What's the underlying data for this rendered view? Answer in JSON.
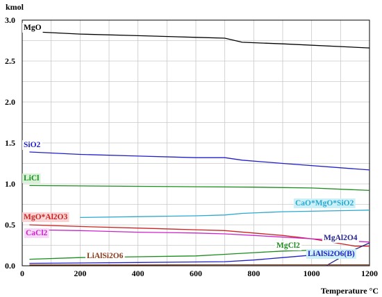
{
  "chart_data": {
    "type": "line",
    "ylabel": "kmol",
    "xlabel": "Temperature °C",
    "xlim": [
      0,
      1200
    ],
    "ylim": [
      0,
      3.0
    ],
    "x_ticks": [
      "0",
      "200",
      "400",
      "600",
      "800",
      "1000",
      "1200"
    ],
    "y_ticks": [
      "0.0",
      "0.5",
      "1.0",
      "1.5",
      "2.0",
      "2.5",
      "3.0"
    ],
    "grid": true,
    "series": [
      {
        "name": "MgO",
        "color": "#000000",
        "label_bg": "#ffffff",
        "x": [
          25,
          200,
          400,
          600,
          700,
          760,
          900,
          1200
        ],
        "y": [
          2.86,
          2.83,
          2.81,
          2.79,
          2.78,
          2.73,
          2.71,
          2.66
        ]
      },
      {
        "name": "SiO2",
        "color": "#1f1fc8",
        "label_bg": "#ffffff",
        "x": [
          25,
          200,
          400,
          600,
          700,
          760,
          900,
          1200
        ],
        "y": [
          1.39,
          1.36,
          1.34,
          1.32,
          1.32,
          1.29,
          1.25,
          1.17
        ]
      },
      {
        "name": "LiCl",
        "color": "#1a8c1a",
        "label_bg": "#d8f2d8",
        "x": [
          25,
          200,
          400,
          600,
          800,
          1000,
          1200
        ],
        "y": [
          0.98,
          0.975,
          0.97,
          0.965,
          0.96,
          0.95,
          0.92
        ]
      },
      {
        "name": "CaO*MgO*SiO2",
        "color": "#2aa8d0",
        "label_bg": "#ccf0f8",
        "x": [
          200,
          400,
          600,
          700,
          760,
          900,
          1200
        ],
        "y": [
          0.59,
          0.6,
          0.61,
          0.62,
          0.64,
          0.66,
          0.68
        ]
      },
      {
        "name": "MgO*Al2O3",
        "color": "#cc2222",
        "label_bg": "#f8d4d4",
        "x": [
          25,
          200,
          400,
          600,
          700,
          800,
          900,
          1000,
          1100,
          1150,
          1200
        ],
        "y": [
          0.5,
          0.48,
          0.46,
          0.44,
          0.43,
          0.4,
          0.37,
          0.33,
          0.27,
          0.24,
          0.24
        ]
      },
      {
        "name": "CaCl2",
        "color": "#cc22cc",
        "label_bg": "#f8d8f8",
        "x": [
          25,
          200,
          400,
          600,
          700,
          800,
          1000,
          1200
        ],
        "y": [
          0.44,
          0.43,
          0.41,
          0.4,
          0.39,
          0.37,
          0.33,
          0.29
        ]
      },
      {
        "name": "MgAl2O4",
        "color": "#24248c",
        "label_bg": "#ffffff",
        "x": [
          1050,
          1100,
          1150,
          1200
        ],
        "y": [
          0.0,
          0.1,
          0.2,
          0.28
        ]
      },
      {
        "name": "MgCl2",
        "color": "#1a8c1a",
        "label_bg": "#ffffff",
        "x": [
          25,
          200,
          400,
          600,
          700,
          800,
          900,
          1000
        ],
        "y": [
          0.08,
          0.1,
          0.11,
          0.12,
          0.14,
          0.16,
          0.18,
          0.19
        ]
      },
      {
        "name": "LiAlSi2O6(B)",
        "color": "#1f1fc8",
        "label_bg": "#ccf0f8",
        "x": [
          25,
          400,
          700,
          800,
          900,
          1000,
          1100
        ],
        "y": [
          0.03,
          0.04,
          0.05,
          0.07,
          0.1,
          0.13,
          0.16
        ]
      },
      {
        "name": "LiAlSi2O6",
        "color": "#8b3a1a",
        "label_bg": "#ffffff",
        "x": [
          25,
          400,
          700,
          800,
          1200
        ],
        "y": [
          0.01,
          0.01,
          0.012,
          0.012,
          0.012
        ]
      }
    ]
  }
}
